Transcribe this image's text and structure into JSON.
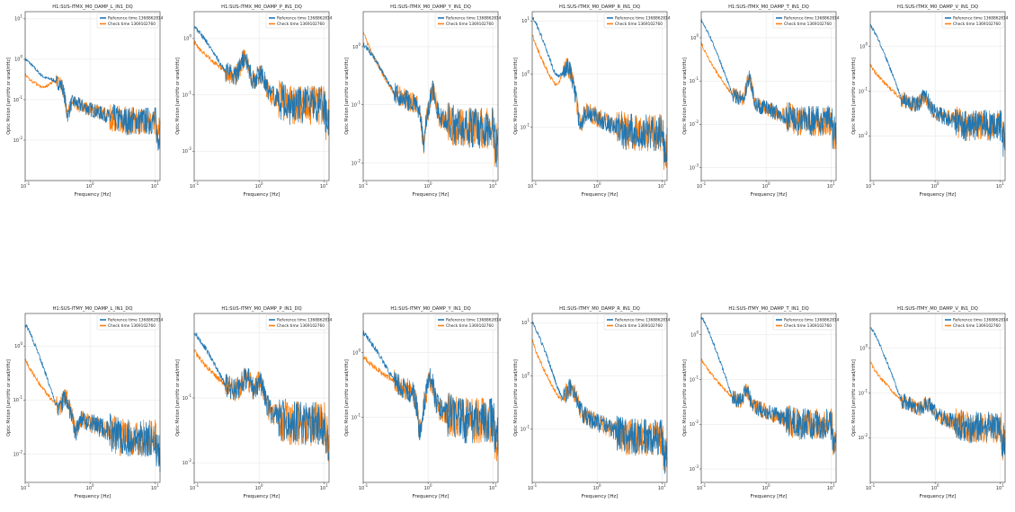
{
  "legend": {
    "reference_label": "Reference time 1368862814",
    "check_label": "Check time 1369102760",
    "reference_color": "#1f77b4",
    "check_color": "#ff7f0e"
  },
  "chart_data": [
    {
      "type": "line",
      "title": "H1:SUS-ITMX_M0_DAMP_L_IN1_DQ",
      "xlabel": "Frequency [Hz]",
      "ylabel": "Optic Motion [um/rtHz or urad/rtHz]",
      "x_scale": "log",
      "y_scale": "log",
      "xlim": [
        0.1,
        12
      ],
      "ylim": [
        0.001,
        15
      ],
      "yticks": [
        "10^-2",
        "10^-1",
        "10^0",
        "10^1"
      ],
      "xticks": [
        "10^-1",
        "10^0",
        "10^1"
      ],
      "legend": "top-right",
      "grid": true,
      "shape": {
        "ref_start": 1.0,
        "chk_start": 0.42,
        "features": [
          [
            0.32,
            0.15,
            2.3
          ],
          [
            0.45,
            0.055,
            0.3
          ]
        ],
        "floor": 0.03
      },
      "series": [
        {
          "name": "Reference time 1368862814",
          "color": "#1f77b4"
        },
        {
          "name": "Check time 1369102760",
          "color": "#ff7f0e"
        }
      ]
    },
    {
      "type": "line",
      "title": "H1:SUS-ITMX_M0_DAMP_P_IN1_DQ",
      "xlabel": "Frequency [Hz]",
      "ylabel": "Optic Motion [um/rtHz or urad/rtHz]",
      "x_scale": "log",
      "y_scale": "log",
      "xlim": [
        0.1,
        12
      ],
      "ylim": [
        0.003,
        3
      ],
      "yticks": [
        "10^-2",
        "10^-1",
        "10^0"
      ],
      "xticks": [
        "10^-1",
        "10^0",
        "10^1"
      ],
      "legend": "top-right",
      "grid": true,
      "shape": {
        "ref_start": 1.6,
        "chk_start": 0.9,
        "features": [
          [
            0.6,
            0.08,
            2.5
          ],
          [
            1.05,
            0.09,
            1.9
          ]
        ],
        "floor": 0.065
      },
      "series": [
        {
          "name": "Reference time 1368862814",
          "color": "#1f77b4"
        },
        {
          "name": "Check time 1369102760",
          "color": "#ff7f0e"
        }
      ]
    },
    {
      "type": "line",
      "title": "H1:SUS-ITMX_M0_DAMP_Y_IN1_DQ",
      "xlabel": "Frequency [Hz]",
      "ylabel": "Optic Motion [um/rtHz or urad/rtHz]",
      "x_scale": "log",
      "y_scale": "log",
      "xlim": [
        0.1,
        12
      ],
      "ylim": [
        0.005,
        4
      ],
      "yticks": [
        "10^-2",
        "10^-1",
        "10^0"
      ],
      "xticks": [
        "10^-1",
        "10^0",
        "10^1"
      ],
      "legend": "top-right",
      "grid": true,
      "shape": {
        "ref_start": 1.1,
        "chk_start": 1.9,
        "features": [
          [
            0.85,
            0.05,
            0.25
          ],
          [
            1.2,
            0.05,
            2.6
          ]
        ],
        "floor": 0.04
      },
      "series": [
        {
          "name": "Reference time 1368862814",
          "color": "#1f77b4"
        },
        {
          "name": "Check time 1369102760",
          "color": "#ff7f0e"
        }
      ]
    },
    {
      "type": "line",
      "title": "H1:SUS-ITMX_M0_DAMP_R_IN1_DQ",
      "xlabel": "Frequency [Hz]",
      "ylabel": "Optic Motion [um/rtHz or urad/rtHz]",
      "x_scale": "log",
      "y_scale": "log",
      "xlim": [
        0.1,
        12
      ],
      "ylim": [
        0.01,
        15
      ],
      "yticks": [
        "10^-1",
        "10^0",
        "10^1"
      ],
      "xticks": [
        "10^-1",
        "10^0",
        "10^1"
      ],
      "legend": "top-right",
      "grid": true,
      "shape": {
        "ref_start": 12,
        "chk_start": 6,
        "features": [
          [
            0.35,
            0.1,
            4.5
          ],
          [
            0.55,
            0.06,
            0.5
          ]
        ],
        "floor": 0.08
      },
      "series": [
        {
          "name": "Reference time 1368862814",
          "color": "#1f77b4"
        },
        {
          "name": "Check time 1369102760",
          "color": "#ff7f0e"
        }
      ]
    },
    {
      "type": "line",
      "title": "H1:SUS-ITMX_M0_DAMP_T_IN1_DQ",
      "xlabel": "Frequency [Hz]",
      "ylabel": "Optic Motion [um/rtHz or urad/rtHz]",
      "x_scale": "log",
      "y_scale": "log",
      "xlim": [
        0.1,
        12
      ],
      "ylim": [
        0.0005,
        4
      ],
      "yticks": [
        "10^-3",
        "10^-2",
        "10^-1",
        "10^0"
      ],
      "xticks": [
        "10^-1",
        "10^0",
        "10^1"
      ],
      "legend": "top-right",
      "grid": true,
      "shape": {
        "ref_start": 2.5,
        "chk_start": 0.8,
        "features": [
          [
            0.55,
            0.05,
            3.5
          ]
        ],
        "floor": 0.012
      },
      "series": [
        {
          "name": "Reference time 1368862814",
          "color": "#1f77b4"
        },
        {
          "name": "Check time 1369102760",
          "color": "#ff7f0e"
        }
      ]
    },
    {
      "type": "line",
      "title": "H1:SUS-ITMX_M0_DAMP_V_IN1_DQ",
      "xlabel": "Frequency [Hz]",
      "ylabel": "Optic Motion [um/rtHz or urad/rtHz]",
      "x_scale": "log",
      "y_scale": "log",
      "xlim": [
        0.1,
        12
      ],
      "ylim": [
        0.001,
        6
      ],
      "yticks": [
        "10^-2",
        "10^-1",
        "10^0"
      ],
      "xticks": [
        "10^-1",
        "10^0",
        "10^1"
      ],
      "legend": "top-right",
      "grid": true,
      "shape": {
        "ref_start": 3.0,
        "chk_start": 0.4,
        "features": [
          [
            0.7,
            0.08,
            1.8
          ]
        ],
        "floor": 0.017
      },
      "series": [
        {
          "name": "Reference time 1368862814",
          "color": "#1f77b4"
        },
        {
          "name": "Check time 1369102760",
          "color": "#ff7f0e"
        }
      ]
    },
    {
      "type": "line",
      "title": "H1:SUS-ITMY_M0_DAMP_L_IN1_DQ",
      "xlabel": "Frequency [Hz]",
      "ylabel": "Optic Motion [um/rtHz or urad/rtHz]",
      "x_scale": "log",
      "y_scale": "log",
      "xlim": [
        0.1,
        12
      ],
      "ylim": [
        0.003,
        4
      ],
      "yticks": [
        "10^-2",
        "10^-1",
        "10^0"
      ],
      "xticks": [
        "10^-1",
        "10^0",
        "10^1"
      ],
      "legend": "top-right",
      "grid": true,
      "shape": {
        "ref_start": 2.5,
        "chk_start": 0.6,
        "features": [
          [
            0.42,
            0.05,
            1.8
          ],
          [
            0.6,
            0.05,
            0.5
          ]
        ],
        "floor": 0.02
      },
      "series": [
        {
          "name": "Reference time 1368862814",
          "color": "#1f77b4"
        },
        {
          "name": "Check time 1369102760",
          "color": "#ff7f0e"
        }
      ]
    },
    {
      "type": "line",
      "title": "H1:SUS-ITMY_M0_DAMP_P_IN1_DQ",
      "xlabel": "Frequency [Hz]",
      "ylabel": "Optic Motion [um/rtHz or urad/rtHz]",
      "x_scale": "log",
      "y_scale": "log",
      "xlim": [
        0.1,
        12
      ],
      "ylim": [
        0.005,
        2
      ],
      "yticks": [
        "10^-2",
        "10^-1"
      ],
      "xticks": [
        "10^-1",
        "10^0",
        "10^1"
      ],
      "legend": "top-right",
      "grid": true,
      "shape": {
        "ref_start": 1.0,
        "chk_start": 0.55,
        "features": [
          [
            0.65,
            0.1,
            2.0
          ],
          [
            1.05,
            0.08,
            2.2
          ]
        ],
        "floor": 0.04
      },
      "series": [
        {
          "name": "Reference time 1368862814",
          "color": "#1f77b4"
        },
        {
          "name": "Check time 1369102760",
          "color": "#ff7f0e"
        }
      ]
    },
    {
      "type": "line",
      "title": "H1:SUS-ITMY_M0_DAMP_Y_IN1_DQ",
      "xlabel": "Frequency [Hz]",
      "ylabel": "Optic Motion [um/rtHz or urad/rtHz]",
      "x_scale": "log",
      "y_scale": "log",
      "xlim": [
        0.1,
        12
      ],
      "ylim": [
        0.01,
        4
      ],
      "yticks": [
        "10^-1",
        "10^0"
      ],
      "xticks": [
        "10^-1",
        "10^0",
        "10^1"
      ],
      "legend": "top-right",
      "grid": true,
      "shape": {
        "ref_start": 2.0,
        "chk_start": 0.9,
        "features": [
          [
            0.75,
            0.06,
            0.3
          ],
          [
            1.1,
            0.06,
            2.3
          ]
        ],
        "floor": 0.09
      },
      "series": [
        {
          "name": "Reference time 1368862814",
          "color": "#1f77b4"
        },
        {
          "name": "Check time 1369102760",
          "color": "#ff7f0e"
        }
      ]
    },
    {
      "type": "line",
      "title": "H1:SUS-ITMY_M0_DAMP_R_IN1_DQ",
      "xlabel": "Frequency [Hz]",
      "ylabel": "Optic Motion [um/rtHz or urad/rtHz]",
      "x_scale": "log",
      "y_scale": "log",
      "xlim": [
        0.1,
        12
      ],
      "ylim": [
        0.01,
        15
      ],
      "yticks": [
        "10^-1",
        "10^0",
        "10^1"
      ],
      "xticks": [
        "10^-1",
        "10^0",
        "10^1"
      ],
      "legend": "top-right",
      "grid": true,
      "shape": {
        "ref_start": 10,
        "chk_start": 5,
        "features": [
          [
            0.4,
            0.1,
            2.5
          ]
        ],
        "floor": 0.07
      },
      "series": [
        {
          "name": "Reference time 1368862814",
          "color": "#1f77b4"
        },
        {
          "name": "Check time 1369102760",
          "color": "#ff7f0e"
        }
      ]
    },
    {
      "type": "line",
      "title": "H1:SUS-ITMY_M0_DAMP_T_IN1_DQ",
      "xlabel": "Frequency [Hz]",
      "ylabel": "Optic Motion [um/rtHz or urad/rtHz]",
      "x_scale": "log",
      "y_scale": "log",
      "xlim": [
        0.1,
        12
      ],
      "ylim": [
        0.0005,
        3
      ],
      "yticks": [
        "10^-3",
        "10^-2",
        "10^-1",
        "10^0"
      ],
      "xticks": [
        "10^-1",
        "10^0",
        "10^1"
      ],
      "legend": "top-right",
      "grid": true,
      "shape": {
        "ref_start": 2.5,
        "chk_start": 0.3,
        "features": [
          [
            0.5,
            0.05,
            2.0
          ]
        ],
        "floor": 0.01
      },
      "series": [
        {
          "name": "Reference time 1368862814",
          "color": "#1f77b4"
        },
        {
          "name": "Check time 1369102760",
          "color": "#ff7f0e"
        }
      ]
    },
    {
      "type": "line",
      "title": "H1:SUS-ITMY_M0_DAMP_V_IN1_DQ",
      "xlabel": "Frequency [Hz]",
      "ylabel": "Optic Motion [um/rtHz or urad/rtHz]",
      "x_scale": "log",
      "y_scale": "log",
      "xlim": [
        0.1,
        12
      ],
      "ylim": [
        0.001,
        6
      ],
      "yticks": [
        "10^-2",
        "10^-1",
        "10^0"
      ],
      "xticks": [
        "10^-1",
        "10^0",
        "10^1"
      ],
      "legend": "top-right",
      "grid": true,
      "shape": {
        "ref_start": 3.0,
        "chk_start": 0.5,
        "features": [
          [
            0.8,
            0.08,
            1.5
          ]
        ],
        "floor": 0.017
      },
      "series": [
        {
          "name": "Reference time 1368862814",
          "color": "#1f77b4"
        },
        {
          "name": "Check time 1369102760",
          "color": "#ff7f0e"
        }
      ]
    }
  ]
}
